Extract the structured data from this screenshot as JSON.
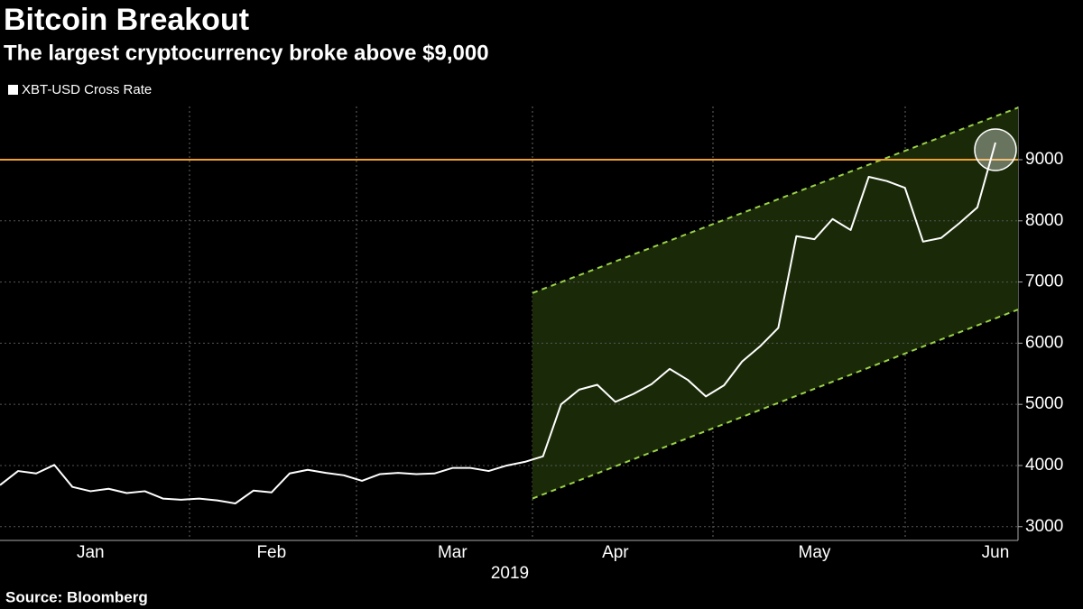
{
  "chart_data": {
    "type": "line",
    "title": "Bitcoin Breakout",
    "subtitle": "The largest cryptocurrency broke above $9,000",
    "source": "Source: Bloomberg",
    "xlabel": "2019",
    "categories": [
      null,
      null,
      null,
      null,
      null,
      "Jan",
      null,
      null,
      null,
      null,
      null,
      null,
      null,
      null,
      null,
      "Feb",
      null,
      null,
      null,
      null,
      null,
      null,
      null,
      null,
      null,
      "Mar",
      null,
      null,
      null,
      null,
      null,
      null,
      null,
      null,
      "Apr",
      null,
      null,
      null,
      null,
      null,
      null,
      null,
      null,
      null,
      null,
      "May",
      null,
      null,
      null,
      null,
      null,
      null,
      null,
      null,
      null,
      "Jun"
    ],
    "series": [
      {
        "name": "XBT-USD Cross Rate",
        "color": "#ffffff",
        "values": [
          3680,
          3910,
          3870,
          4010,
          3650,
          3580,
          3620,
          3550,
          3580,
          3460,
          3440,
          3460,
          3430,
          3380,
          3590,
          3560,
          3870,
          3930,
          3880,
          3840,
          3750,
          3860,
          3880,
          3860,
          3870,
          3960,
          3960,
          3910,
          4000,
          4060,
          4150,
          5000,
          5240,
          5320,
          5040,
          5170,
          5330,
          5580,
          5400,
          5130,
          5310,
          5700,
          5950,
          6250,
          7750,
          7700,
          8030,
          7850,
          8720,
          8650,
          8540,
          7660,
          7720,
          7960,
          8220,
          9280
        ]
      }
    ],
    "ylim": [
      2790,
      9870
    ],
    "yticks": [
      3000,
      4000,
      5000,
      6000,
      7000,
      8000,
      9000
    ],
    "grid": true,
    "reference_line": {
      "value": 9000,
      "color": "#f0a030"
    },
    "channel": {
      "upper": [
        6820,
        9850
      ],
      "lower": [
        3460,
        6550
      ],
      "color": "#9bd14a",
      "fill": "#1a2a08"
    }
  }
}
